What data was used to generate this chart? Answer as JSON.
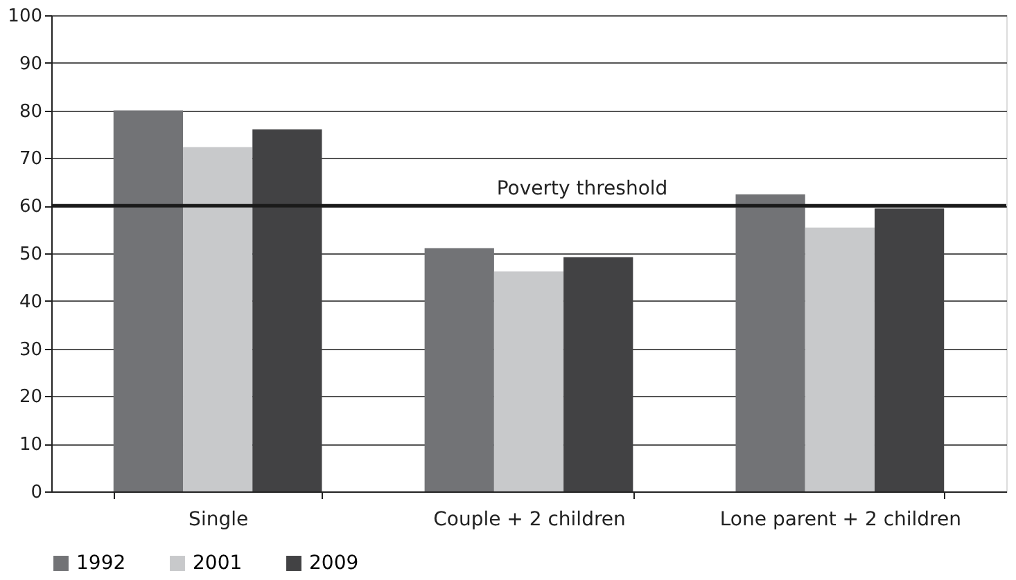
{
  "chart_data": {
    "type": "bar",
    "categories": [
      "Single",
      "Couple + 2 children",
      "Lone parent + 2 children"
    ],
    "series": [
      {
        "name": "1992",
        "color": "#727376",
        "values": [
          80,
          51.1,
          62.4
        ]
      },
      {
        "name": "2001",
        "color": "#c8c9cb",
        "values": [
          72.3,
          46.2,
          55.4
        ]
      },
      {
        "name": "2009",
        "color": "#424244",
        "values": [
          76,
          49.2,
          59.4
        ]
      }
    ],
    "ylim": [
      0,
      100
    ],
    "yticks": [
      0,
      10,
      20,
      30,
      40,
      50,
      60,
      70,
      80,
      90,
      100
    ],
    "grid": "y",
    "legend": "bottom",
    "ref_lines": [
      {
        "axis": "y",
        "value": 60,
        "label": "Poverty threshold",
        "color": "#1a1a1a"
      }
    ]
  }
}
